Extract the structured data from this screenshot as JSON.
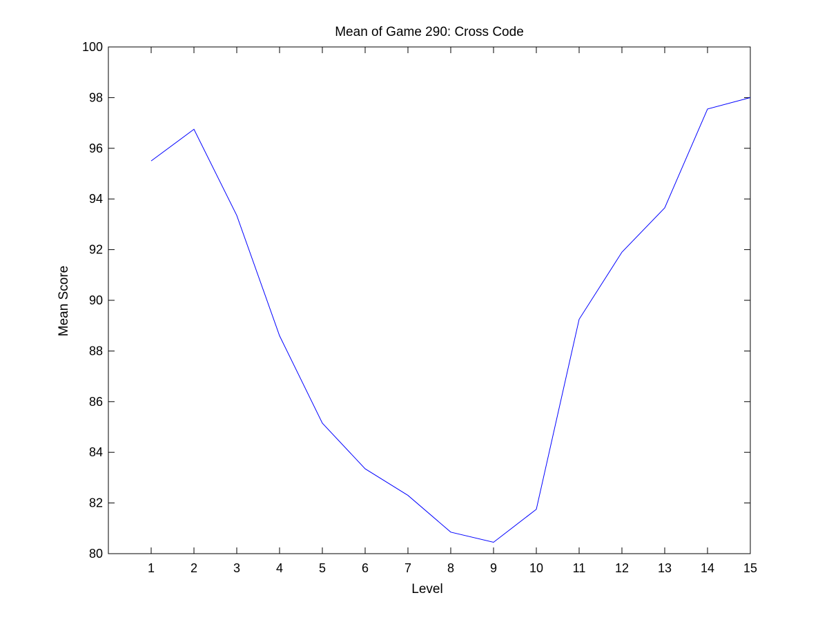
{
  "chart_data": {
    "type": "line",
    "title": "Mean of Game 290: Cross Code",
    "xlabel": "Level",
    "ylabel": "Mean Score",
    "xlim": [
      0,
      15
    ],
    "ylim": [
      80,
      100
    ],
    "xticks": [
      1,
      2,
      3,
      4,
      5,
      6,
      7,
      8,
      9,
      10,
      11,
      12,
      13,
      14,
      15
    ],
    "yticks": [
      80,
      82,
      84,
      86,
      88,
      90,
      92,
      94,
      96,
      98,
      100
    ],
    "grid": false,
    "line_color": "#0000ff",
    "series": [
      {
        "x": [
          1,
          2,
          3,
          4,
          5,
          6,
          7,
          8,
          9,
          10,
          11,
          12,
          13,
          14,
          15
        ],
        "values": [
          95.5,
          96.75,
          93.35,
          88.6,
          85.15,
          83.35,
          82.3,
          80.85,
          80.45,
          81.75,
          89.25,
          91.9,
          93.65,
          97.55,
          98.0
        ]
      }
    ]
  }
}
